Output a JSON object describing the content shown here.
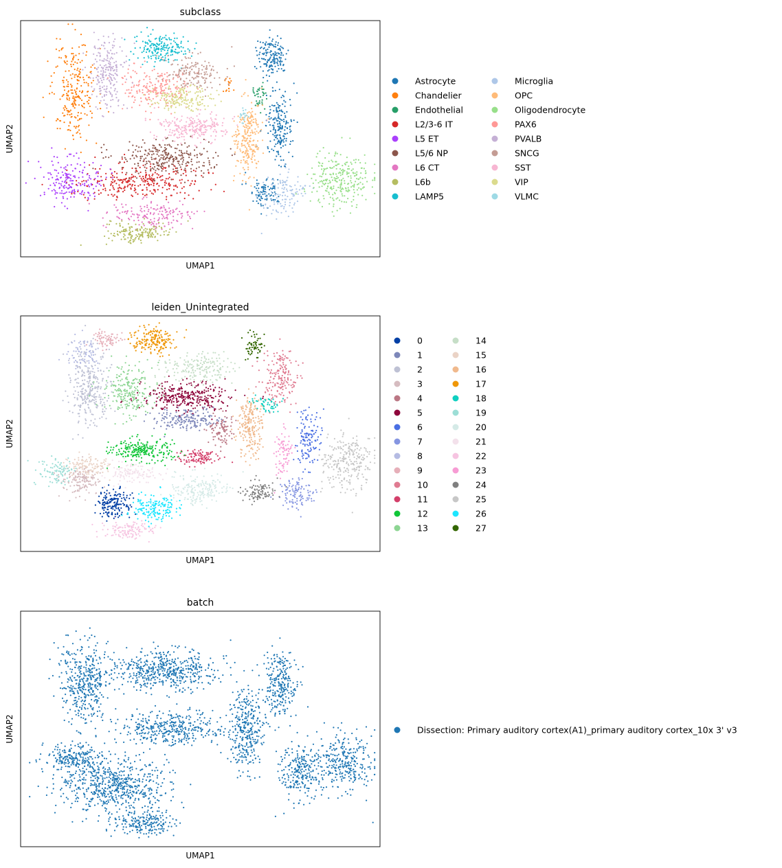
{
  "chart_data": [
    {
      "type": "scatter",
      "title": "subclass",
      "xlabel": "UMAP1",
      "ylabel": "UMAP2",
      "grid": false,
      "legend_placement": "right",
      "legend_columns": 2,
      "series": [
        {
          "name": "Astrocyte",
          "color": "#1f77b4",
          "clusters": [
            [
              0.7,
              0.15,
              0.035,
              0.07,
              160
            ],
            [
              0.72,
              0.45,
              0.03,
              0.12,
              200
            ],
            [
              0.68,
              0.72,
              0.04,
              0.05,
              90
            ]
          ]
        },
        {
          "name": "Chandelier",
          "color": "#ff7f0e",
          "clusters": [
            [
              0.15,
              0.3,
              0.05,
              0.18,
              260
            ],
            [
              0.58,
              0.28,
              0.01,
              0.03,
              15
            ]
          ]
        },
        {
          "name": "Endothelial",
          "color": "#279e68",
          "clusters": [
            [
              0.66,
              0.32,
              0.02,
              0.05,
              40
            ]
          ]
        },
        {
          "name": "L2/3-6 IT",
          "color": "#d62728",
          "clusters": [
            [
              0.33,
              0.68,
              0.15,
              0.06,
              300
            ]
          ]
        },
        {
          "name": "L5 ET",
          "color": "#aa40fc",
          "clusters": [
            [
              0.14,
              0.68,
              0.07,
              0.08,
              190
            ]
          ]
        },
        {
          "name": "L5/6 NP",
          "color": "#8c564b",
          "clusters": [
            [
              0.4,
              0.58,
              0.11,
              0.06,
              280
            ]
          ]
        },
        {
          "name": "L6 CT",
          "color": "#e377c2",
          "clusters": [
            [
              0.37,
              0.82,
              0.09,
              0.05,
              160
            ]
          ]
        },
        {
          "name": "L6b",
          "color": "#b5bd61",
          "clusters": [
            [
              0.33,
              0.9,
              0.08,
              0.04,
              160
            ]
          ]
        },
        {
          "name": "LAMP5",
          "color": "#17becf",
          "clusters": [
            [
              0.39,
              0.12,
              0.06,
              0.05,
              190
            ]
          ]
        },
        {
          "name": "Microglia",
          "color": "#aec7e8",
          "clusters": [
            [
              0.73,
              0.73,
              0.05,
              0.08,
              120
            ]
          ]
        },
        {
          "name": "OPC",
          "color": "#ffbb78",
          "clusters": [
            [
              0.63,
              0.5,
              0.03,
              0.14,
              240
            ]
          ]
        },
        {
          "name": "Oligodendrocyte",
          "color": "#98df8a",
          "clusters": [
            [
              0.89,
              0.68,
              0.07,
              0.1,
              270
            ]
          ]
        },
        {
          "name": "PAX6",
          "color": "#ff9896",
          "clusters": [
            [
              0.38,
              0.28,
              0.08,
              0.07,
              200
            ]
          ]
        },
        {
          "name": "PVALB",
          "color": "#c5b0d5",
          "clusters": [
            [
              0.24,
              0.22,
              0.04,
              0.12,
              220
            ]
          ]
        },
        {
          "name": "SNCG",
          "color": "#c49c94",
          "clusters": [
            [
              0.48,
              0.22,
              0.07,
              0.06,
              160
            ]
          ]
        },
        {
          "name": "SST",
          "color": "#f7b6d2",
          "clusters": [
            [
              0.48,
              0.45,
              0.08,
              0.05,
              240
            ]
          ]
        },
        {
          "name": "VIP",
          "color": "#dbdb8d",
          "clusters": [
            [
              0.45,
              0.33,
              0.07,
              0.04,
              180
            ]
          ]
        },
        {
          "name": "VLMC",
          "color": "#9edae5",
          "clusters": [
            [
              0.62,
              0.4,
              0.01,
              0.03,
              20
            ]
          ]
        }
      ]
    },
    {
      "type": "scatter",
      "title": "leiden_Unintegrated",
      "xlabel": "UMAP1",
      "ylabel": "UMAP2",
      "grid": false,
      "legend_placement": "right",
      "legend_columns": 2,
      "series": [
        {
          "name": "0",
          "color": "#023fa5",
          "clusters": [
            [
              0.26,
              0.8,
              0.04,
              0.05,
              170
            ]
          ]
        },
        {
          "name": "1",
          "color": "#7d87b9",
          "clusters": [
            [
              0.46,
              0.44,
              0.08,
              0.04,
              180
            ]
          ]
        },
        {
          "name": "2",
          "color": "#bec1d4",
          "clusters": [
            [
              0.19,
              0.3,
              0.05,
              0.13,
              300
            ]
          ]
        },
        {
          "name": "3",
          "color": "#d6bcc0",
          "clusters": [
            [
              0.17,
              0.7,
              0.05,
              0.05,
              150
            ]
          ]
        },
        {
          "name": "4",
          "color": "#bb7784",
          "clusters": [
            [
              0.56,
              0.48,
              0.03,
              0.06,
              90
            ]
          ]
        },
        {
          "name": "5",
          "color": "#8e063b",
          "clusters": [
            [
              0.46,
              0.34,
              0.1,
              0.05,
              320
            ]
          ]
        },
        {
          "name": "6",
          "color": "#4a6fe3",
          "clusters": [
            [
              0.8,
              0.52,
              0.03,
              0.1,
              130
            ]
          ]
        },
        {
          "name": "7",
          "color": "#8595e1",
          "clusters": [
            [
              0.77,
              0.76,
              0.04,
              0.06,
              110
            ]
          ]
        },
        {
          "name": "8",
          "color": "#b5bbe3",
          "clusters": [
            [
              0.18,
              0.15,
              0.04,
              0.05,
              80
            ]
          ]
        },
        {
          "name": "9",
          "color": "#e6afb9",
          "clusters": [
            [
              0.24,
              0.1,
              0.04,
              0.03,
              70
            ]
          ]
        },
        {
          "name": "10",
          "color": "#e07b91",
          "clusters": [
            [
              0.72,
              0.27,
              0.04,
              0.1,
              180
            ]
          ]
        },
        {
          "name": "11",
          "color": "#d33f6a",
          "clusters": [
            [
              0.49,
              0.6,
              0.05,
              0.03,
              110
            ]
          ]
        },
        {
          "name": "12",
          "color": "#11c638",
          "clusters": [
            [
              0.34,
              0.57,
              0.07,
              0.04,
              230
            ]
          ]
        },
        {
          "name": "13",
          "color": "#8dd593",
          "clusters": [
            [
              0.3,
              0.32,
              0.06,
              0.09,
              230
            ]
          ]
        },
        {
          "name": "14",
          "color": "#c6dec7",
          "clusters": [
            [
              0.49,
              0.22,
              0.08,
              0.05,
              180
            ]
          ]
        },
        {
          "name": "15",
          "color": "#ead3c6",
          "clusters": [
            [
              0.19,
              0.64,
              0.05,
              0.04,
              110
            ]
          ]
        },
        {
          "name": "16",
          "color": "#f0b98d",
          "clusters": [
            [
              0.64,
              0.47,
              0.03,
              0.11,
              220
            ]
          ]
        },
        {
          "name": "17",
          "color": "#ef9708",
          "clusters": [
            [
              0.37,
              0.1,
              0.05,
              0.05,
              190
            ]
          ]
        },
        {
          "name": "18",
          "color": "#0fcfc0",
          "clusters": [
            [
              0.68,
              0.37,
              0.03,
              0.03,
              50
            ]
          ]
        },
        {
          "name": "19",
          "color": "#9cded6",
          "clusters": [
            [
              0.1,
              0.66,
              0.04,
              0.05,
              90
            ]
          ]
        },
        {
          "name": "20",
          "color": "#d5eae7",
          "clusters": [
            [
              0.5,
              0.74,
              0.07,
              0.06,
              190
            ]
          ]
        },
        {
          "name": "21",
          "color": "#f3e1eb",
          "clusters": [
            [
              0.31,
              0.67,
              0.06,
              0.04,
              120
            ]
          ]
        },
        {
          "name": "22",
          "color": "#f6c4e1",
          "clusters": [
            [
              0.3,
              0.91,
              0.06,
              0.03,
              120
            ]
          ]
        },
        {
          "name": "23",
          "color": "#f79cd4",
          "clusters": [
            [
              0.73,
              0.58,
              0.02,
              0.08,
              80
            ]
          ]
        },
        {
          "name": "24",
          "color": "#7f7f7f",
          "clusters": [
            [
              0.66,
              0.75,
              0.04,
              0.04,
              100
            ]
          ]
        },
        {
          "name": "25",
          "color": "#c7c7c7",
          "clusters": [
            [
              0.91,
              0.62,
              0.06,
              0.1,
              260
            ]
          ]
        },
        {
          "name": "26",
          "color": "#1ce6ff",
          "clusters": [
            [
              0.37,
              0.82,
              0.05,
              0.05,
              160
            ]
          ]
        },
        {
          "name": "27",
          "color": "#336600",
          "clusters": [
            [
              0.65,
              0.12,
              0.02,
              0.05,
              60
            ]
          ]
        }
      ]
    },
    {
      "type": "scatter",
      "title": "batch",
      "xlabel": "UMAP1",
      "ylabel": "UMAP2",
      "grid": false,
      "legend_placement": "right",
      "legend_columns": 1,
      "series": [
        {
          "name": "Dissection: Primary auditory cortex(A1)_primary auditory cortex_10x 3' v3",
          "color": "#1f77b4",
          "clusters": [
            [
              0.18,
              0.3,
              0.06,
              0.14,
              420
            ],
            [
              0.4,
              0.25,
              0.12,
              0.07,
              520
            ],
            [
              0.42,
              0.5,
              0.12,
              0.06,
              380
            ],
            [
              0.26,
              0.74,
              0.13,
              0.09,
              620
            ],
            [
              0.15,
              0.62,
              0.07,
              0.05,
              220
            ],
            [
              0.63,
              0.5,
              0.04,
              0.14,
              320
            ],
            [
              0.72,
              0.32,
              0.04,
              0.12,
              260
            ],
            [
              0.78,
              0.68,
              0.05,
              0.1,
              250
            ],
            [
              0.9,
              0.64,
              0.07,
              0.1,
              300
            ],
            [
              0.34,
              0.9,
              0.07,
              0.04,
              200
            ]
          ]
        }
      ]
    }
  ]
}
